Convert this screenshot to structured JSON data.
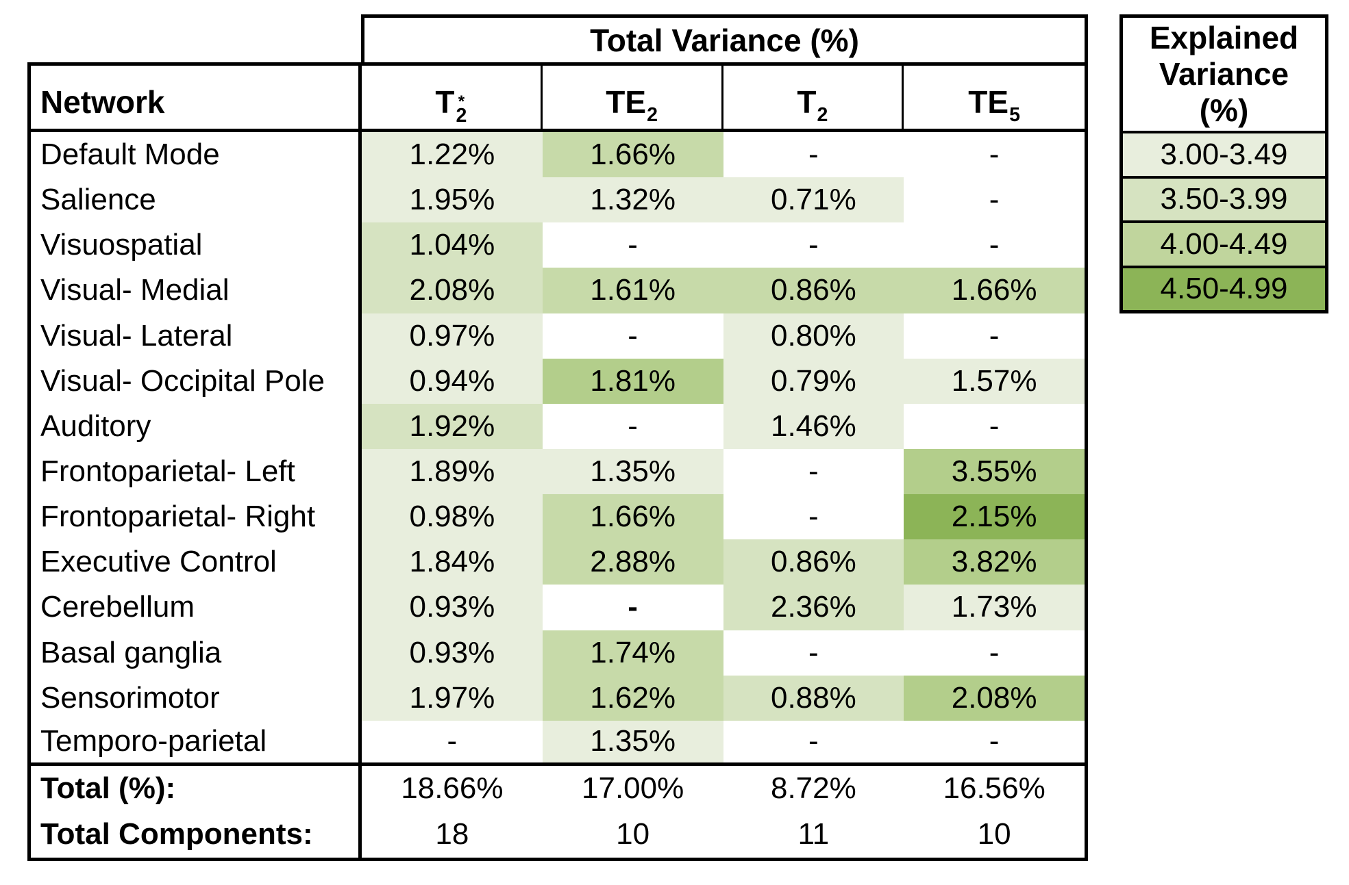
{
  "title_box": {
    "label": "Total Variance (%)"
  },
  "colors": {
    "w": "#ffffff",
    "l1": "#e8eedd",
    "l2": "#d6e3c1",
    "l3": "#c7daa9",
    "l4": "#b3ce8b",
    "l5": "#8cb457"
  },
  "table": {
    "network_header": "Network",
    "columns": [
      {
        "base": "T",
        "sub": "2",
        "sup": "*"
      },
      {
        "base": "TE",
        "sub": "2",
        "sup": ""
      },
      {
        "base": "T",
        "sub": "2",
        "sup": ""
      },
      {
        "base": "TE",
        "sub": "5",
        "sup": ""
      }
    ],
    "rows": [
      {
        "network": "Default Mode",
        "cells": [
          {
            "t": "1.22%",
            "c": "l1"
          },
          {
            "t": "1.66%",
            "c": "l3"
          },
          {
            "t": "-",
            "c": "w"
          },
          {
            "t": "-",
            "c": "w"
          }
        ]
      },
      {
        "network": "Salience",
        "cells": [
          {
            "t": "1.95%",
            "c": "l1"
          },
          {
            "t": "1.32%",
            "c": "l1"
          },
          {
            "t": "0.71%",
            "c": "l1"
          },
          {
            "t": "-",
            "c": "w"
          }
        ]
      },
      {
        "network": "Visuospatial",
        "cells": [
          {
            "t": "1.04%",
            "c": "l2"
          },
          {
            "t": "-",
            "c": "w"
          },
          {
            "t": "-",
            "c": "w"
          },
          {
            "t": "-",
            "c": "w"
          }
        ]
      },
      {
        "network": "Visual- Medial",
        "cells": [
          {
            "t": "2.08%",
            "c": "l2"
          },
          {
            "t": "1.61%",
            "c": "l3"
          },
          {
            "t": "0.86%",
            "c": "l3"
          },
          {
            "t": "1.66%",
            "c": "l3"
          }
        ]
      },
      {
        "network": "Visual- Lateral",
        "cells": [
          {
            "t": "0.97%",
            "c": "l1"
          },
          {
            "t": "-",
            "c": "w"
          },
          {
            "t": "0.80%",
            "c": "l1"
          },
          {
            "t": "-",
            "c": "w"
          }
        ]
      },
      {
        "network": "Visual- Occipital Pole",
        "cells": [
          {
            "t": "0.94%",
            "c": "l1"
          },
          {
            "t": "1.81%",
            "c": "l4"
          },
          {
            "t": "0.79%",
            "c": "l1"
          },
          {
            "t": "1.57%",
            "c": "l1"
          }
        ]
      },
      {
        "network": "Auditory",
        "cells": [
          {
            "t": "1.92%",
            "c": "l2"
          },
          {
            "t": "-",
            "c": "w"
          },
          {
            "t": "1.46%",
            "c": "l1"
          },
          {
            "t": "-",
            "c": "w"
          }
        ]
      },
      {
        "network": "Frontoparietal- Left",
        "cells": [
          {
            "t": "1.89%",
            "c": "l1"
          },
          {
            "t": "1.35%",
            "c": "l1"
          },
          {
            "t": "-",
            "c": "w"
          },
          {
            "t": "3.55%",
            "c": "l4"
          }
        ]
      },
      {
        "network": "Frontoparietal- Right",
        "cells": [
          {
            "t": "0.98%",
            "c": "l1"
          },
          {
            "t": "1.66%",
            "c": "l3"
          },
          {
            "t": "-",
            "c": "w"
          },
          {
            "t": "2.15%",
            "c": "l5"
          }
        ]
      },
      {
        "network": "Executive Control",
        "cells": [
          {
            "t": "1.84%",
            "c": "l1"
          },
          {
            "t": "2.88%",
            "c": "l3"
          },
          {
            "t": "0.86%",
            "c": "l2"
          },
          {
            "t": "3.82%",
            "c": "l4"
          }
        ]
      },
      {
        "network": "Cerebellum",
        "cells": [
          {
            "t": "0.93%",
            "c": "l1"
          },
          {
            "t": "-",
            "c": "w",
            "bold": true
          },
          {
            "t": "2.36%",
            "c": "l2"
          },
          {
            "t": "1.73%",
            "c": "l1"
          }
        ]
      },
      {
        "network": "Basal ganglia",
        "cells": [
          {
            "t": "0.93%",
            "c": "l1"
          },
          {
            "t": "1.74%",
            "c": "l3"
          },
          {
            "t": "-",
            "c": "w"
          },
          {
            "t": "-",
            "c": "w"
          }
        ]
      },
      {
        "network": "Sensorimotor",
        "cells": [
          {
            "t": "1.97%",
            "c": "l1"
          },
          {
            "t": "1.62%",
            "c": "l3"
          },
          {
            "t": "0.88%",
            "c": "l2"
          },
          {
            "t": "2.08%",
            "c": "l4"
          }
        ]
      },
      {
        "network": "Temporo-parietal",
        "cells": [
          {
            "t": "-",
            "c": "w"
          },
          {
            "t": "1.35%",
            "c": "l1"
          },
          {
            "t": "-",
            "c": "w"
          },
          {
            "t": "-",
            "c": "w"
          }
        ]
      }
    ],
    "totals": [
      {
        "label": "Total (%):",
        "values": [
          "18.66%",
          "17.00%",
          "8.72%",
          "16.56%"
        ]
      },
      {
        "label": "Total Components:",
        "values": [
          "18",
          "10",
          "11",
          "10"
        ]
      }
    ]
  },
  "legend": {
    "title_lines": [
      "Explained",
      "Variance",
      "(%)"
    ],
    "entries": [
      {
        "label": "3.00-3.49",
        "color": "#e8eedd"
      },
      {
        "label": "3.50-3.99",
        "color": "#d6e3c1"
      },
      {
        "label": "4.00-4.49",
        "color": "#c0d59d"
      },
      {
        "label": "4.50-4.99",
        "color": "#8cb457"
      }
    ]
  }
}
